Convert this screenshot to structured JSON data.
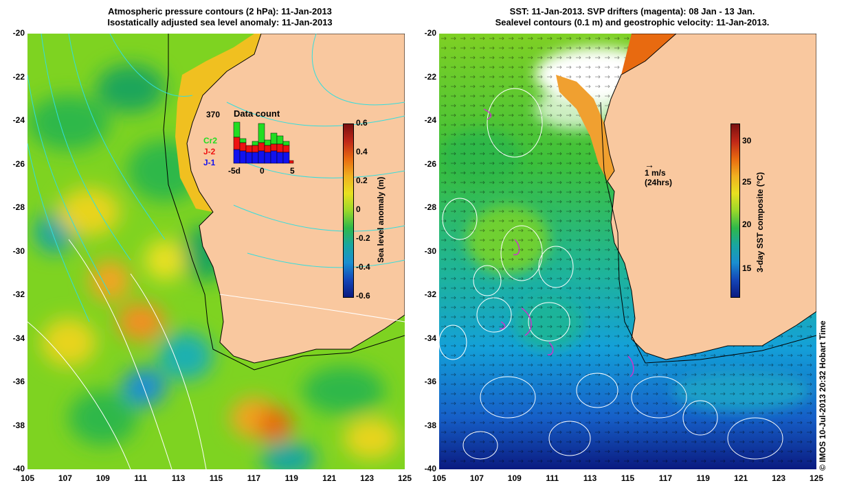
{
  "left": {
    "title_line1": "Atmospheric pressure contours (2 hPa): 11-Jan-2013",
    "title_line2": "Isostatically adjusted sea level anomaly: 11-Jan-2013",
    "colorbar_label": "Sea level anomaly (m)",
    "colorbar_ticks": [
      "0.6",
      "0.4",
      "0.2",
      "0",
      "-0.2",
      "-0.4",
      "-0.6"
    ],
    "data_count": {
      "title": "Data count",
      "max_label": "370",
      "x_ticks": [
        "-5d",
        "0",
        "5"
      ],
      "legend": [
        {
          "name": "Cr2",
          "color": "#22dd22"
        },
        {
          "name": "J-2",
          "color": "#ee1111"
        },
        {
          "name": "J-1",
          "color": "#1111ee"
        }
      ]
    }
  },
  "right": {
    "title_line1": "SST: 11-Jan-2013. SVP drifters (magenta): 08 Jan - 13 Jan.",
    "title_line2": "Sealevel contours (0.1 m) and geostrophic velocity: 11-Jan-2013.",
    "colorbar_label": "3-day SST composite (°C)",
    "colorbar_ticks": [
      "30",
      "25",
      "20",
      "15"
    ],
    "velocity_scale_label": "1 m/s",
    "velocity_scale_sub": "(24hrs)"
  },
  "y_ticks": [
    "-20",
    "-22",
    "-24",
    "-26",
    "-28",
    "-30",
    "-32",
    "-34",
    "-36",
    "-38",
    "-40"
  ],
  "x_ticks": [
    "105",
    "107",
    "109",
    "111",
    "113",
    "115",
    "117",
    "119",
    "121",
    "123",
    "125"
  ],
  "credit": "© IMOS 10-Jul-2013 20:32 Hobart Time",
  "colors": {
    "land": "#f9c89f",
    "coast": "#000000",
    "pressure_contour": "#33dddd",
    "sealevel_contour": "#ffffff",
    "drifter": "#cc33cc"
  }
}
